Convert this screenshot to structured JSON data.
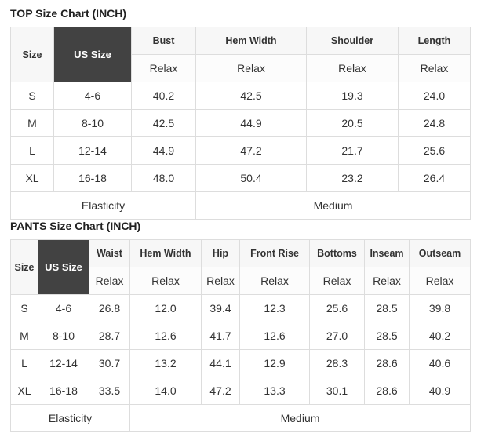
{
  "top": {
    "title": "TOP Size Chart (INCH)",
    "headers": [
      "Size",
      "US Size",
      "Bust",
      "Hem Width",
      "Shoulder",
      "Length"
    ],
    "sub": [
      "Relax",
      "Relax",
      "Relax",
      "Relax"
    ],
    "rows": [
      [
        "S",
        "4-6",
        "40.2",
        "42.5",
        "19.3",
        "24.0"
      ],
      [
        "M",
        "8-10",
        "42.5",
        "44.9",
        "20.5",
        "24.8"
      ],
      [
        "L",
        "12-14",
        "44.9",
        "47.2",
        "21.7",
        "25.6"
      ],
      [
        "XL",
        "16-18",
        "48.0",
        "50.4",
        "23.2",
        "26.4"
      ]
    ],
    "footer": [
      "Elasticity",
      "Medium"
    ]
  },
  "pants": {
    "title": "PANTS Size Chart (INCH)",
    "headers": [
      "Size",
      "US Size",
      "Waist",
      "Hem Width",
      "Hip",
      "Front Rise",
      "Bottoms",
      "Inseam",
      "Outseam"
    ],
    "sub": [
      "Relax",
      "Relax",
      "Relax",
      "Relax",
      "Relax",
      "Relax",
      "Relax"
    ],
    "rows": [
      [
        "S",
        "4-6",
        "26.8",
        "12.0",
        "39.4",
        "12.3",
        "25.6",
        "28.5",
        "39.8"
      ],
      [
        "M",
        "8-10",
        "28.7",
        "12.6",
        "41.7",
        "12.6",
        "27.0",
        "28.5",
        "40.2"
      ],
      [
        "L",
        "12-14",
        "30.7",
        "13.2",
        "44.1",
        "12.9",
        "28.3",
        "28.6",
        "40.6"
      ],
      [
        "XL",
        "16-18",
        "33.5",
        "14.0",
        "47.2",
        "13.3",
        "30.1",
        "28.6",
        "40.9"
      ]
    ],
    "footer": [
      "Elasticity",
      "Medium"
    ]
  }
}
